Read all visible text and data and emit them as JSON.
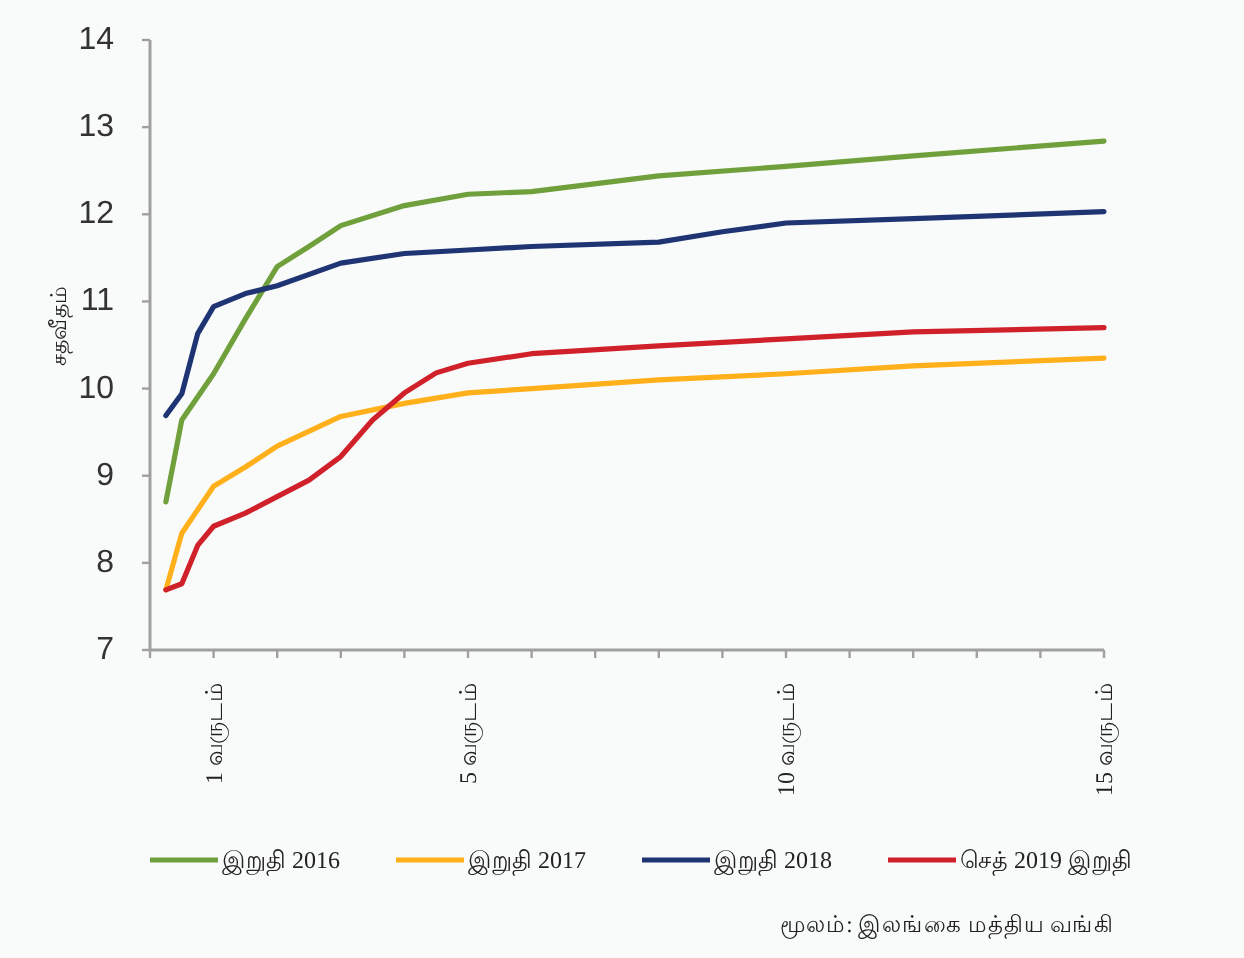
{
  "chart_data": {
    "type": "line",
    "ylabel": "சதவீதம்",
    "xlim": [
      0,
      15
    ],
    "ylim": [
      7,
      14
    ],
    "yticks": [
      7,
      8,
      9,
      10,
      11,
      12,
      13,
      14
    ],
    "xticks": [
      {
        "value": 0,
        "label": null
      },
      {
        "value": 1,
        "label": "1 வருடம்"
      },
      {
        "value": 2,
        "label": null
      },
      {
        "value": 3,
        "label": null
      },
      {
        "value": 4,
        "label": null
      },
      {
        "value": 5,
        "label": "5 வருடம்"
      },
      {
        "value": 6,
        "label": null
      },
      {
        "value": 7,
        "label": null
      },
      {
        "value": 8,
        "label": null
      },
      {
        "value": 9,
        "label": null
      },
      {
        "value": 10,
        "label": "10 வருடம்"
      },
      {
        "value": 11,
        "label": null
      },
      {
        "value": 12,
        "label": null
      },
      {
        "value": 13,
        "label": null
      },
      {
        "value": 14,
        "label": null
      },
      {
        "value": 15,
        "label": "15 வருடம்"
      }
    ],
    "grid": false,
    "legend": "bottom",
    "line_style": "solid",
    "marker": "none",
    "series": [
      {
        "name": "இறுதி 2016",
        "color": "#70a03c",
        "x": [
          0.25,
          0.5,
          1,
          1.5,
          2,
          2.5,
          3,
          4,
          5,
          6,
          8,
          10,
          12,
          15
        ],
        "values": [
          8.7,
          9.64,
          10.17,
          10.8,
          11.4,
          11.63,
          11.87,
          12.1,
          12.23,
          12.26,
          12.44,
          12.55,
          12.67,
          12.84
        ]
      },
      {
        "name": "இறுதி 2017",
        "color": "#ffb01a",
        "x": [
          0.25,
          0.5,
          1,
          1.5,
          2,
          3,
          4,
          5,
          6,
          8,
          10,
          12,
          15
        ],
        "values": [
          7.69,
          8.34,
          8.88,
          9.1,
          9.34,
          9.68,
          9.83,
          9.95,
          10.0,
          10.1,
          10.17,
          10.26,
          10.35
        ]
      },
      {
        "name": "இறுதி 2018",
        "color": "#1f3473",
        "x": [
          0.25,
          0.5,
          0.75,
          1,
          1.5,
          2,
          3,
          4,
          5,
          6,
          8,
          9,
          10,
          12,
          15
        ],
        "values": [
          9.69,
          9.94,
          10.63,
          10.94,
          11.09,
          11.18,
          11.44,
          11.55,
          11.59,
          11.63,
          11.68,
          11.8,
          11.9,
          11.95,
          12.03
        ]
      },
      {
        "name": "செத் 2019 இறுதி",
        "color": "#d0202a",
        "x": [
          0.25,
          0.5,
          0.75,
          1,
          1.5,
          2,
          2.5,
          3,
          3.5,
          4,
          4.5,
          5,
          6,
          8,
          10,
          12,
          15
        ],
        "values": [
          7.69,
          7.76,
          8.2,
          8.42,
          8.57,
          8.76,
          8.95,
          9.22,
          9.64,
          9.95,
          10.18,
          10.29,
          10.4,
          10.49,
          10.57,
          10.65,
          10.7
        ]
      }
    ],
    "annotations": [
      "மூலம்: இலங்கை மத்திய வங்கி"
    ]
  }
}
